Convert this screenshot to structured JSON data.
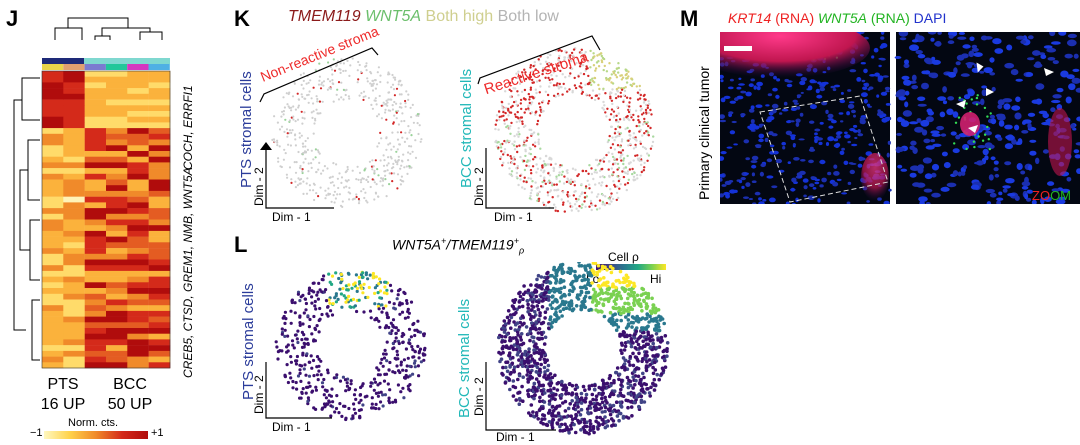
{
  "panels": {
    "J": {
      "label": "J",
      "row_gene_groups": [
        {
          "text": "COCH, ERRFI1",
          "color": "#2b3c9a"
        },
        {
          "text": "CREB5, CTSD, GREM1, NMB, WNT5A",
          "color": "#21b8b8"
        }
      ],
      "groups": [
        {
          "name": "PTS",
          "count": "16 UP",
          "color": "#2b3c9a"
        },
        {
          "name": "BCC",
          "count": "50 UP",
          "color": "#21b8b8"
        }
      ],
      "colorbar": {
        "title": "Norm. cts.",
        "min": "−1",
        "max": "+1"
      },
      "column_annotation_colors": [
        "#e9d44a",
        "#e0a070",
        "#7b7bd0",
        "#22c79a",
        "#d437c0",
        "#4fb0e4"
      ],
      "group_bar_colors": [
        "#1e2a78",
        "#7fd8d0"
      ]
    },
    "K": {
      "label": "K",
      "legend": [
        {
          "text": "TMEM119",
          "color": "#8b1a1a",
          "italic": true
        },
        {
          "text": "WNT5A",
          "color": "#6cbf6c",
          "italic": true
        },
        {
          "text": "Both high",
          "color": "#cfcf8f",
          "italic": false
        },
        {
          "text": "Both low",
          "color": "#b4b4b4",
          "italic": false
        }
      ],
      "plots": [
        {
          "ylabel": "PTS stromal cells",
          "ylabel_color": "#2b3c9a",
          "annotation": "Non-reactive stroma"
        },
        {
          "ylabel": "BCC stromal cells",
          "ylabel_color": "#21b8b8",
          "annotation": "Reactive stroma"
        }
      ],
      "axes": {
        "x": "Dim - 1",
        "y": "Dim - 2"
      },
      "annotation_color": "#ee2a2a"
    },
    "L": {
      "label": "L",
      "title_main": "WNT5A",
      "title_sup1": "+",
      "title_mid": "/TMEM119",
      "title_sup2": "+",
      "title_sub": "ρ",
      "colorbar": {
        "title": "Cell ρ",
        "lo": "Lo",
        "hi": "Hi"
      },
      "plots": [
        {
          "ylabel": "PTS stromal cells",
          "ylabel_color": "#2b3c9a"
        },
        {
          "ylabel": "BCC stromal cells",
          "ylabel_color": "#21b8b8"
        }
      ],
      "axes": {
        "x": "Dim - 1",
        "y": "Dim - 2"
      }
    },
    "M": {
      "label": "M",
      "title_parts": [
        {
          "text": "KRT14",
          "color": "#ee2222",
          "italic": true
        },
        {
          "text": " (RNA) ",
          "color": "#ee2222",
          "italic": false
        },
        {
          "text": "WNT5A",
          "color": "#22b422",
          "italic": true
        },
        {
          "text": " (RNA) ",
          "color": "#22b422",
          "italic": false
        },
        {
          "text": "DAPI",
          "color": "#2233cc",
          "italic": false
        }
      ],
      "side_label": "Primary clinical tumor",
      "zoom_label_parts": [
        {
          "text": "ZO",
          "color": "#ee2222"
        },
        {
          "text": "OM",
          "color": "#22b422"
        }
      ]
    }
  }
}
